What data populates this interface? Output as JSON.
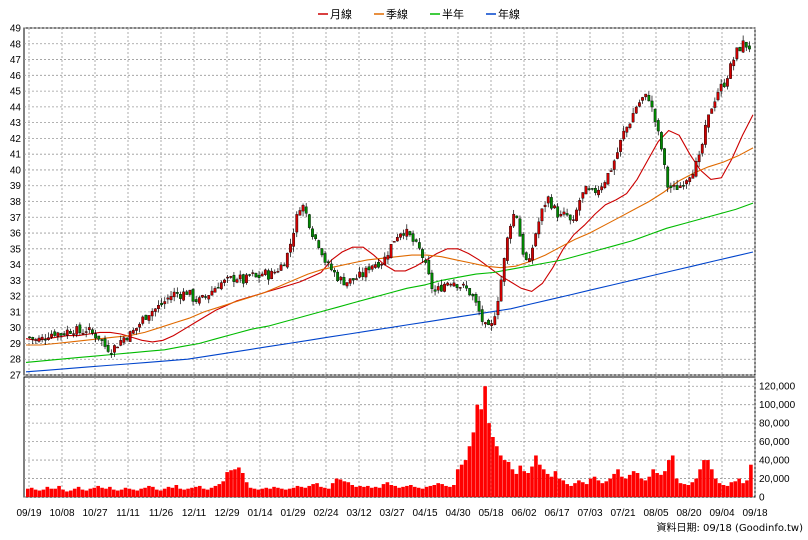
{
  "chart_data": [
    {
      "type": "candlestick",
      "ylim": [
        27,
        49
      ],
      "y_ticks": [
        27,
        28,
        29,
        30,
        31,
        32,
        33,
        34,
        35,
        36,
        37,
        38,
        39,
        40,
        41,
        42,
        43,
        44,
        45,
        46,
        47,
        48,
        49
      ],
      "grid": true,
      "legend_position": "top-center",
      "legend": [
        {
          "name": "月線",
          "color": "#cc0000"
        },
        {
          "name": "季線",
          "color": "#e06a00"
        },
        {
          "name": "半年",
          "color": "#00bb00"
        },
        {
          "name": "年線",
          "color": "#0044cc"
        }
      ],
      "x_tick_labels": [
        "09/19",
        "10/08",
        "10/27",
        "11/11",
        "11/26",
        "12/11",
        "12/29",
        "01/14",
        "01/29",
        "02/24",
        "03/12",
        "03/27",
        "04/15",
        "04/30",
        "05/18",
        "06/02",
        "06/17",
        "07/03",
        "07/21",
        "08/05",
        "08/20",
        "09/04",
        "09/18"
      ],
      "close_path": [
        29.4,
        29.2,
        29.3,
        29.6,
        29.7,
        29.6,
        29.8,
        29.9,
        29.7,
        29.9,
        29.6,
        29.4,
        28.8,
        28.6,
        29.0,
        29.4,
        29.6,
        30.0,
        30.6,
        31.0,
        31.2,
        31.5,
        31.9,
        32.2,
        32.1,
        32.3,
        31.8,
        31.7,
        32.0,
        32.4,
        32.8,
        32.9,
        33.1,
        33.2,
        32.9,
        33.4,
        33.1,
        33.5,
        33.3,
        33.6,
        34.0,
        34.8,
        36.5,
        38.0,
        37.0,
        35.8,
        35.2,
        34.0,
        33.6,
        33.1,
        32.9,
        33.0,
        33.2,
        33.4,
        34.0,
        34.1,
        34.2,
        35.0,
        35.8,
        36.2,
        35.9,
        35.3,
        34.8,
        33.5,
        32.2,
        32.5,
        32.9,
        33.0,
        32.7,
        32.5,
        32.1,
        31.2,
        30.1,
        29.8,
        31.5,
        33.8,
        36.5,
        37.5,
        35.0,
        33.8,
        35.8,
        37.2,
        38.3,
        37.6,
        37.0,
        37.2,
        36.4,
        38.0,
        38.7,
        38.5,
        38.8,
        39.3,
        40.0,
        41.0,
        42.3,
        43.0,
        44.0,
        44.5,
        44.7,
        43.2,
        41.5,
        39.0,
        38.8,
        39.0,
        39.5,
        40.0,
        40.6,
        42.5,
        44.0,
        45.0,
        45.5,
        46.5,
        47.5,
        48.0,
        47.8
      ],
      "series": [
        {
          "name": "月線",
          "values": [
            29.3,
            29.2,
            29.3,
            29.4,
            29.5,
            29.5,
            29.6,
            29.7,
            29.7,
            29.6,
            29.4,
            29.2,
            29.1,
            29.2,
            29.5,
            29.9,
            30.3,
            30.7,
            31.1,
            31.4,
            31.7,
            31.9,
            32.1,
            32.3,
            32.5,
            32.7,
            32.9,
            33.2,
            33.5,
            34.3,
            34.8,
            35.1,
            35.1,
            34.6,
            34.0,
            33.6,
            33.6,
            33.9,
            34.3,
            34.7,
            35.0,
            35.0,
            34.7,
            34.3,
            33.8,
            33.3,
            32.9,
            32.5,
            32.3,
            32.8,
            33.8,
            35.0,
            35.9,
            36.5,
            37.2,
            37.8,
            38.1,
            38.5,
            39.4,
            40.6,
            41.8,
            42.5,
            42.2,
            41.0,
            40.0,
            39.4,
            39.5,
            40.7,
            42.2,
            43.5
          ]
        },
        {
          "name": "季線",
          "values": [
            28.9,
            28.9,
            29.0,
            29.1,
            29.2,
            29.3,
            29.4,
            29.5,
            29.7,
            30.0,
            30.3,
            30.6,
            31.0,
            31.3,
            31.6,
            31.9,
            32.2,
            32.6,
            33.0,
            33.4,
            33.7,
            33.9,
            34.1,
            34.3,
            34.4,
            34.5,
            34.6,
            34.6,
            34.5,
            34.3,
            34.1,
            33.9,
            33.8,
            33.9,
            34.2,
            34.6,
            35.1,
            35.6,
            36.0,
            36.5,
            37.0,
            37.5,
            38.0,
            38.6,
            39.3,
            39.8,
            40.2,
            40.5,
            40.9,
            41.4
          ]
        },
        {
          "name": "半年",
          "values": [
            27.8,
            27.9,
            28.0,
            28.1,
            28.2,
            28.3,
            28.4,
            28.5,
            28.6,
            28.8,
            29.0,
            29.3,
            29.6,
            29.9,
            30.1,
            30.4,
            30.7,
            31.0,
            31.3,
            31.6,
            31.9,
            32.2,
            32.5,
            32.7,
            33.0,
            33.2,
            33.4,
            33.5,
            33.7,
            33.9,
            34.1,
            34.3,
            34.6,
            34.9,
            35.2,
            35.5,
            35.9,
            36.3,
            36.6,
            36.9,
            37.2,
            37.5,
            37.9
          ]
        },
        {
          "name": "年線",
          "values": [
            27.2,
            27.3,
            27.4,
            27.5,
            27.6,
            27.7,
            27.8,
            27.9,
            28.0,
            28.2,
            28.4,
            28.6,
            28.8,
            29.0,
            29.2,
            29.4,
            29.6,
            29.8,
            30.0,
            30.2,
            30.4,
            30.6,
            30.8,
            31.0,
            31.2,
            31.5,
            31.8,
            32.1,
            32.4,
            32.7,
            33.0,
            33.3,
            33.6,
            33.9,
            34.2,
            34.5,
            34.8
          ]
        }
      ]
    },
    {
      "type": "bar",
      "ylim": [
        0,
        130000
      ],
      "y_ticks": [
        "0",
        "20,000",
        "40,000",
        "60,000",
        "80,000",
        "100,000",
        "120,000"
      ],
      "color": "#ff0000",
      "values": [
        9,
        10,
        8,
        7,
        8,
        11,
        9,
        9,
        12,
        8,
        6,
        7,
        9,
        11,
        8,
        7,
        9,
        10,
        12,
        10,
        9,
        11,
        8,
        7,
        8,
        10,
        9,
        8,
        7,
        9,
        10,
        12,
        11,
        8,
        7,
        9,
        11,
        10,
        13,
        9,
        8,
        9,
        10,
        11,
        12,
        9,
        8,
        10,
        12,
        14,
        17,
        27,
        29,
        30,
        32,
        26,
        16,
        10,
        9,
        8,
        9,
        10,
        9,
        11,
        10,
        9,
        8,
        9,
        10,
        12,
        11,
        10,
        12,
        14,
        15,
        11,
        10,
        9,
        15,
        20,
        19,
        17,
        16,
        13,
        11,
        12,
        11,
        12,
        10,
        11,
        10,
        14,
        16,
        13,
        12,
        10,
        11,
        12,
        13,
        11,
        10,
        9,
        11,
        12,
        13,
        15,
        14,
        12,
        11,
        13,
        30,
        35,
        40,
        55,
        70,
        100,
        95,
        120,
        80,
        65,
        55,
        45,
        40,
        38,
        30,
        25,
        34,
        28,
        26,
        33,
        45,
        35,
        30,
        25,
        22,
        28,
        20,
        18,
        14,
        12,
        15,
        18,
        16,
        14,
        20,
        22,
        18,
        15,
        17,
        20,
        25,
        30,
        22,
        20,
        24,
        28,
        26,
        20,
        18,
        22,
        30,
        26,
        24,
        28,
        40,
        45,
        20,
        15,
        14,
        13,
        16,
        20,
        30,
        40,
        40,
        30,
        20,
        15,
        13,
        12,
        16,
        17,
        20,
        15,
        18,
        35
      ]
    }
  ],
  "source_label": "資料日期: 09/18  (Goodinfo.tw)"
}
